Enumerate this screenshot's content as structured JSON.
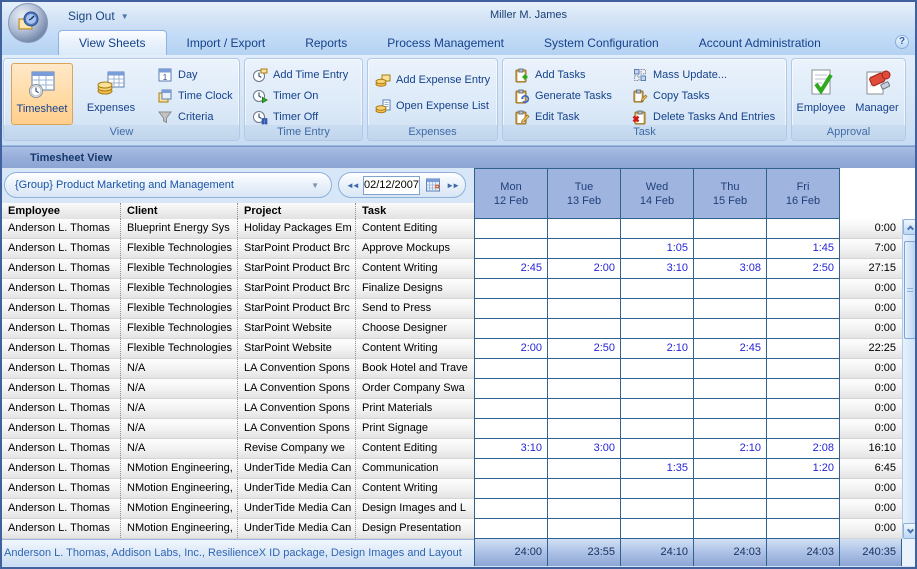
{
  "titlebar": {
    "sign_out": "Sign Out",
    "user": "Miller M. James"
  },
  "tabs": [
    {
      "label": "View Sheets",
      "active": true
    },
    {
      "label": "Import / Export",
      "active": false
    },
    {
      "label": "Reports",
      "active": false
    },
    {
      "label": "Process Management",
      "active": false
    },
    {
      "label": "System Configuration",
      "active": false
    },
    {
      "label": "Account Administration",
      "active": false
    }
  ],
  "help_label": "?",
  "ribbon": {
    "groups": [
      {
        "name": "View"
      },
      {
        "name": "Time Entry"
      },
      {
        "name": "Expenses"
      },
      {
        "name": "Task"
      },
      {
        "name": "Approval"
      }
    ],
    "buttons": {
      "timesheet": "Timesheet",
      "expenses": "Expenses",
      "day": "Day",
      "time_clock": "Time Clock",
      "criteria": "Criteria",
      "add_time_entry": "Add Time Entry",
      "timer_on": "Timer On",
      "timer_off": "Timer Off",
      "add_expense_entry": "Add Expense Entry",
      "open_expense_list": "Open Expense List",
      "add_tasks": "Add Tasks",
      "generate_tasks": "Generate Tasks",
      "edit_task": "Edit Task",
      "mass_update": "Mass Update...",
      "copy_tasks": "Copy Tasks",
      "delete_tasks": "Delete Tasks And Entries",
      "employee": "Employee",
      "manager": "Manager"
    }
  },
  "view_header": "Timesheet View",
  "controls": {
    "group_selector": "{Group} Product Marketing and Management",
    "date": "02/12/2007"
  },
  "table": {
    "columns": [
      "Employee",
      "Client",
      "Project",
      "Task"
    ],
    "day_headers": [
      {
        "day": "Mon",
        "date": "12 Feb"
      },
      {
        "day": "Tue",
        "date": "13 Feb"
      },
      {
        "day": "Wed",
        "date": "14 Feb"
      },
      {
        "day": "Thu",
        "date": "15 Feb"
      },
      {
        "day": "Fri",
        "date": "16 Feb"
      }
    ],
    "rows": [
      {
        "employee": "Anderson L. Thomas",
        "client": "Blueprint Energy Sys",
        "project": "Holiday Packages Em",
        "task": "Content Editing",
        "times": [
          "",
          "",
          "",
          "",
          ""
        ],
        "total": "0:00"
      },
      {
        "employee": "Anderson L. Thomas",
        "client": "Flexible Technologies",
        "project": "StarPoint Product Brc",
        "task": "Approve Mockups",
        "times": [
          "",
          "",
          "1:05",
          "",
          "1:45"
        ],
        "total": "7:00"
      },
      {
        "employee": "Anderson L. Thomas",
        "client": "Flexible Technologies",
        "project": "StarPoint Product Brc",
        "task": "Content Writing",
        "times": [
          "2:45",
          "2:00",
          "3:10",
          "3:08",
          "2:50"
        ],
        "total": "27:15"
      },
      {
        "employee": "Anderson L. Thomas",
        "client": "Flexible Technologies",
        "project": "StarPoint Product Brc",
        "task": "Finalize Designs",
        "times": [
          "",
          "",
          "",
          "",
          ""
        ],
        "total": "0:00"
      },
      {
        "employee": "Anderson L. Thomas",
        "client": "Flexible Technologies",
        "project": "StarPoint Product Brc",
        "task": "Send to Press",
        "times": [
          "",
          "",
          "",
          "",
          ""
        ],
        "total": "0:00"
      },
      {
        "employee": "Anderson L. Thomas",
        "client": "Flexible Technologies",
        "project": "StarPoint Website",
        "task": "Choose Designer",
        "times": [
          "",
          "",
          "",
          "",
          ""
        ],
        "total": "0:00"
      },
      {
        "employee": "Anderson L. Thomas",
        "client": "Flexible Technologies",
        "project": "StarPoint Website",
        "task": "Content Writing",
        "times": [
          "2:00",
          "2:50",
          "2:10",
          "2:45",
          ""
        ],
        "total": "22:25"
      },
      {
        "employee": "Anderson L. Thomas",
        "client": "N/A",
        "project": "LA Convention Spons",
        "task": "Book Hotel and Trave",
        "times": [
          "",
          "",
          "",
          "",
          ""
        ],
        "total": "0:00"
      },
      {
        "employee": "Anderson L. Thomas",
        "client": "N/A",
        "project": "LA Convention Spons",
        "task": "Order Company Swa",
        "times": [
          "",
          "",
          "",
          "",
          ""
        ],
        "total": "0:00"
      },
      {
        "employee": "Anderson L. Thomas",
        "client": "N/A",
        "project": "LA Convention Spons",
        "task": "Print Materials",
        "times": [
          "",
          "",
          "",
          "",
          ""
        ],
        "total": "0:00"
      },
      {
        "employee": "Anderson L. Thomas",
        "client": "N/A",
        "project": "LA Convention Spons",
        "task": "Print Signage",
        "times": [
          "",
          "",
          "",
          "",
          ""
        ],
        "total": "0:00"
      },
      {
        "employee": "Anderson L. Thomas",
        "client": "N/A",
        "project": "Revise Company we",
        "task": "Content Editing",
        "times": [
          "3:10",
          "3:00",
          "",
          "2:10",
          "2:08"
        ],
        "total": "16:10"
      },
      {
        "employee": "Anderson L. Thomas",
        "client": "NMotion Engineering,",
        "project": "UnderTide Media Can",
        "task": "Communication",
        "times": [
          "",
          "",
          "1:35",
          "",
          "1:20"
        ],
        "total": "6:45"
      },
      {
        "employee": "Anderson L. Thomas",
        "client": "NMotion Engineering,",
        "project": "UnderTide Media Can",
        "task": "Content Writing",
        "times": [
          "",
          "",
          "",
          "",
          ""
        ],
        "total": "0:00"
      },
      {
        "employee": "Anderson L. Thomas",
        "client": "NMotion Engineering,",
        "project": "UnderTide Media Can",
        "task": "Design Images and L",
        "times": [
          "",
          "",
          "",
          "",
          ""
        ],
        "total": "0:00"
      },
      {
        "employee": "Anderson L. Thomas",
        "client": "NMotion Engineering,",
        "project": "UnderTide Media Can",
        "task": "Design Presentation",
        "times": [
          "",
          "",
          "",
          "",
          ""
        ],
        "total": "0:00"
      }
    ],
    "totals": {
      "days": [
        "24:00",
        "23:55",
        "24:10",
        "24:03",
        "24:03"
      ],
      "grand": "240:35"
    }
  },
  "statusbar": {
    "text": "Anderson L. Thomas, Addison Labs, Inc., ResilienceX ID package, Design Images and Layout"
  },
  "colors": {
    "accent_selected": "#FFD9A4",
    "grid_border": "#31618F",
    "time_entry_text": "#2626D8",
    "header_blue": "#9FB5DF"
  }
}
